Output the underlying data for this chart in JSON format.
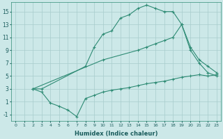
{
  "xlabel": "Humidex (Indice chaleur)",
  "background_color": "#cce8e8",
  "line_color": "#2e8b74",
  "grid_color": "#a8cccc",
  "xlim": [
    -0.5,
    23.5
  ],
  "ylim": [
    -2,
    16.5
  ],
  "xticks": [
    0,
    1,
    2,
    3,
    4,
    5,
    6,
    7,
    8,
    9,
    10,
    11,
    12,
    13,
    14,
    15,
    16,
    17,
    18,
    19,
    20,
    21,
    22,
    23
  ],
  "yticks": [
    -1,
    1,
    3,
    5,
    7,
    9,
    11,
    13,
    15
  ],
  "line1": {
    "x": [
      2,
      3,
      8,
      9,
      10,
      11,
      12,
      13,
      14,
      15,
      16,
      17,
      18,
      19,
      20,
      21,
      22,
      23
    ],
    "y": [
      3,
      3,
      6.5,
      9.5,
      11.5,
      12.0,
      14.0,
      14.5,
      15.5,
      16.0,
      15.5,
      15.0,
      15.0,
      13.0,
      9.0,
      7.0,
      5.5,
      5.0
    ]
  },
  "line2": {
    "x": [
      2,
      3,
      4,
      5,
      6,
      7,
      8,
      9,
      10,
      11,
      12,
      13,
      14,
      15,
      16,
      17,
      18,
      19,
      20,
      21,
      22,
      23
    ],
    "y": [
      3,
      2.5,
      0.8,
      0.3,
      -0.3,
      -1.3,
      1.5,
      2.0,
      2.5,
      2.8,
      3.0,
      3.2,
      3.5,
      3.8,
      4.0,
      4.2,
      4.5,
      4.8,
      5.0,
      5.2,
      5.0,
      5.2
    ]
  },
  "line3": {
    "x": [
      2,
      10,
      14,
      15,
      16,
      17,
      18,
      19,
      20,
      21,
      22,
      23
    ],
    "y": [
      3,
      7.5,
      9.0,
      9.5,
      10.0,
      10.5,
      11.0,
      13.0,
      9.5,
      7.5,
      6.5,
      5.5
    ]
  }
}
